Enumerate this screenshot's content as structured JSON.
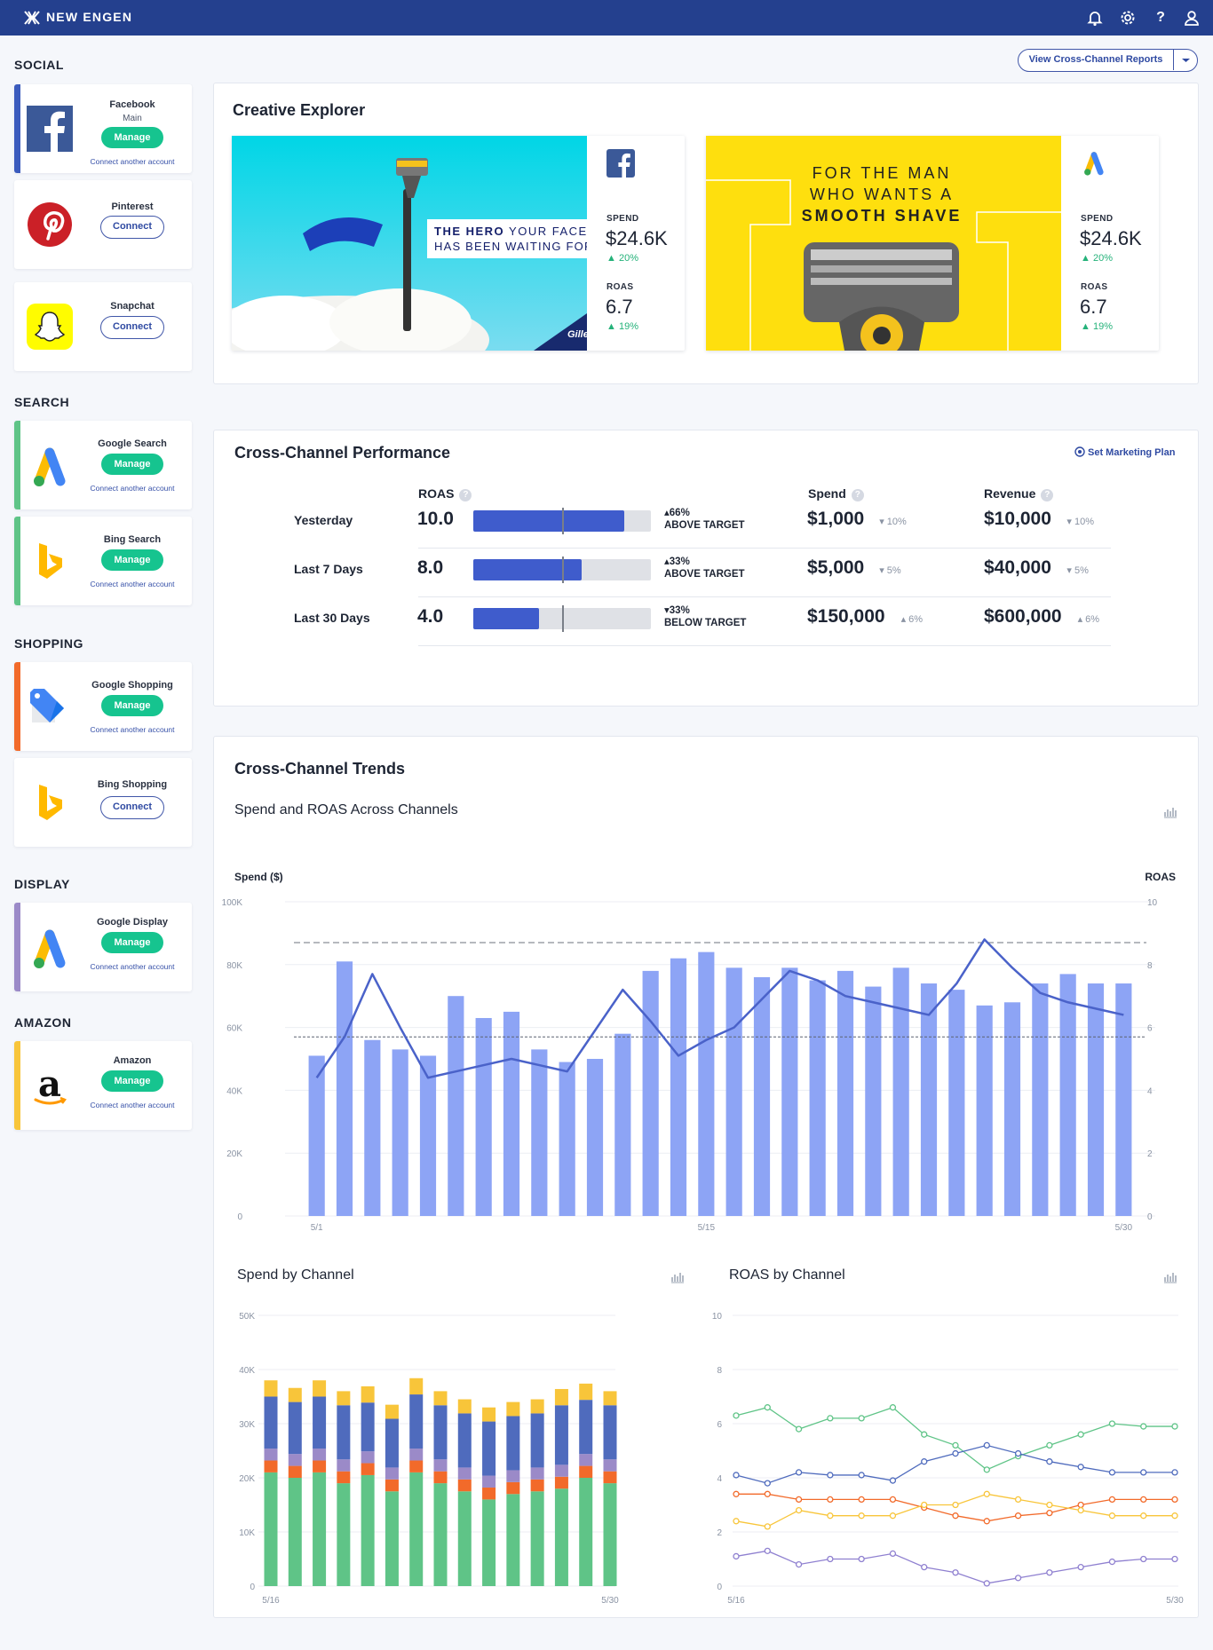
{
  "topbar": {
    "brand": "NEW ENGEN",
    "icons": [
      "bell-icon",
      "gear-icon",
      "help-icon",
      "user-icon"
    ],
    "help_glyph": "?"
  },
  "sidebar": {
    "sections": {
      "social": "SOCIAL",
      "search": "SEARCH",
      "shopping": "SHOPPING",
      "display": "DISPLAY",
      "amazon": "AMAZON"
    },
    "accounts": {
      "facebook": {
        "name": "Facebook",
        "sub": "Main",
        "action": "Manage",
        "link": "Connect another account"
      },
      "pinterest": {
        "name": "Pinterest",
        "action": "Connect"
      },
      "snapchat": {
        "name": "Snapchat",
        "action": "Connect"
      },
      "google_search": {
        "name": "Google Search",
        "action": "Manage",
        "link": "Connect another account"
      },
      "bing_search": {
        "name": "Bing Search",
        "action": "Manage",
        "link": "Connect another account"
      },
      "google_shopping": {
        "name": "Google Shopping",
        "action": "Manage",
        "link": "Connect another account"
      },
      "bing_shopping": {
        "name": "Bing Shopping",
        "action": "Connect"
      },
      "google_display": {
        "name": "Google Display",
        "action": "Manage",
        "link": "Connect another account"
      },
      "amazon": {
        "name": "Amazon",
        "action": "Manage",
        "link": "Connect another account"
      }
    },
    "colors": {
      "facebook": "#3b5bbd",
      "search": "#5fc487",
      "shopping": "#f26a2a",
      "display": "#9b8ac8",
      "amazon": "#f8c53a"
    }
  },
  "reports_button": {
    "label": "View Cross-Channel Reports"
  },
  "creative_explorer": {
    "title": "Creative Explorer",
    "ads": [
      {
        "channel": "facebook",
        "headline_bold": "THE HERO",
        "headline_rest": " YOUR FACE",
        "headline_line2": "HAS BEEN WAITING FOR.",
        "brand_mark": "Gille",
        "spend_label": "SPEND",
        "spend": "$24.6K",
        "spend_delta": "20%",
        "roas_label": "ROAS",
        "roas": "6.7",
        "roas_delta": "19%"
      },
      {
        "channel": "google-ads",
        "line1": "FOR THE MAN",
        "line2": "WHO WANTS A",
        "line3": "SMOOTH SHAVE",
        "spend_label": "SPEND",
        "spend": "$24.6K",
        "spend_delta": "20%",
        "roas_label": "ROAS",
        "roas": "6.7",
        "roas_delta": "19%"
      }
    ]
  },
  "performance": {
    "title": "Cross-Channel Performance",
    "plan_link": "Set Marketing Plan",
    "headers": {
      "roas": "ROAS",
      "spend": "Spend",
      "revenue": "Revenue",
      "help": "?"
    },
    "rows": [
      {
        "label": "Yesterday",
        "roas": "10.0",
        "fill": 0.85,
        "target_pct": "66%",
        "target_dir": "up",
        "target_text": "ABOVE TARGET",
        "spend": "$1,000",
        "spend_delta": "10%",
        "spend_dir": "down",
        "revenue": "$10,000",
        "revenue_delta": "10%",
        "revenue_dir": "down"
      },
      {
        "label": "Last 7 Days",
        "roas": "8.0",
        "fill": 0.61,
        "target_pct": "33%",
        "target_dir": "up",
        "target_text": "ABOVE TARGET",
        "spend": "$5,000",
        "spend_delta": "5%",
        "spend_dir": "down",
        "revenue": "$40,000",
        "revenue_delta": "5%",
        "revenue_dir": "down"
      },
      {
        "label": "Last 30 Days",
        "roas": "4.0",
        "fill": 0.37,
        "target_pct": "33%",
        "target_dir": "down",
        "target_text": "BELOW TARGET",
        "spend": "$150,000",
        "spend_delta": "6%",
        "spend_dir": "up",
        "revenue": "$600,000",
        "revenue_delta": "6%",
        "revenue_dir": "up"
      }
    ]
  },
  "trends": {
    "title": "Cross-Channel Trends",
    "main_chart_title": "Spend and ROAS Across Channels",
    "spend_channel_title": "Spend by Channel",
    "roas_channel_title": "ROAS by Channel"
  },
  "chart_data": [
    {
      "type": "bar",
      "title": "Spend and ROAS Across Channels",
      "ylabel": "Spend ($)",
      "y2label": "ROAS",
      "ylim": [
        0,
        100000
      ],
      "y2lim": [
        0,
        10
      ],
      "yticks": [
        "0",
        "20K",
        "40K",
        "60K",
        "80K",
        "100K"
      ],
      "y2ticks": [
        "0",
        "2",
        "4",
        "6",
        "8",
        "10"
      ],
      "xtick_labels": [
        "5/1",
        "5/15",
        "5/30"
      ],
      "xtick_index": [
        0,
        14,
        29
      ],
      "series": [
        {
          "type": "bar",
          "color": "#8da4f5",
          "values": [
            51000,
            81000,
            56000,
            53000,
            51000,
            70000,
            63000,
            65000,
            53000,
            49000,
            50000,
            58000,
            78000,
            82000,
            84000,
            79000,
            76000,
            79000,
            75000,
            78000,
            73000,
            79000,
            74000,
            72000,
            67000,
            68000,
            74000,
            77000,
            74000,
            74000
          ]
        },
        {
          "type": "line",
          "axis": "right",
          "color": "#4a62c9",
          "values": [
            4.4,
            5.7,
            7.7,
            6.0,
            4.4,
            4.6,
            4.8,
            5.0,
            4.8,
            4.6,
            5.9,
            7.2,
            6.2,
            5.1,
            5.6,
            6.0,
            6.9,
            7.8,
            7.5,
            7.0,
            6.8,
            6.6,
            6.4,
            7.4,
            8.8,
            7.9,
            7.1,
            6.8,
            6.6,
            6.4
          ]
        },
        {
          "type": "hline",
          "axis": "right",
          "style": "dashed",
          "color": "#8a8f98",
          "value": 8.7
        },
        {
          "type": "hline",
          "axis": "right",
          "style": "dotted",
          "color": "#5d6270",
          "value": 5.7
        }
      ]
    },
    {
      "type": "bar",
      "stacked": true,
      "title": "Spend by Channel",
      "ylim": [
        0,
        50000
      ],
      "yticks": [
        "0",
        "10K",
        "20K",
        "30K",
        "40K",
        "50K"
      ],
      "xtick_labels": [
        "5/16",
        "5/30"
      ],
      "series": [
        {
          "color": "#5fc487",
          "values": [
            21000,
            20000,
            21000,
            19000,
            20500,
            17500,
            21000,
            19000,
            17500,
            16000,
            17000,
            17500,
            18000,
            20000,
            19000
          ]
        },
        {
          "color": "#f26a2a",
          "values": [
            2200,
            2200,
            2200,
            2200,
            2200,
            2200,
            2200,
            2200,
            2200,
            2200,
            2200,
            2200,
            2200,
            2200,
            2200
          ]
        },
        {
          "color": "#9b8ac8",
          "values": [
            2200,
            2200,
            2200,
            2200,
            2200,
            2200,
            2200,
            2200,
            2200,
            2200,
            2200,
            2200,
            2200,
            2200,
            2200
          ]
        },
        {
          "color": "#4f6bbd",
          "values": [
            9600,
            9600,
            9600,
            10000,
            9000,
            9000,
            10000,
            10000,
            10000,
            10000,
            10000,
            10000,
            11000,
            10000,
            10000
          ]
        },
        {
          "color": "#f8c53a",
          "values": [
            3000,
            2600,
            3000,
            2600,
            3000,
            2600,
            3000,
            2600,
            2600,
            2600,
            2600,
            2600,
            3000,
            3000,
            2600
          ]
        }
      ]
    },
    {
      "type": "line",
      "title": "ROAS by Channel",
      "ylim": [
        0,
        10
      ],
      "yticks": [
        "0",
        "2",
        "4",
        "6",
        "8",
        "10"
      ],
      "xtick_labels": [
        "5/16",
        "5/30"
      ],
      "series": [
        {
          "color": "#5fc487",
          "values": [
            6.3,
            6.6,
            5.8,
            6.2,
            6.2,
            6.6,
            5.6,
            5.2,
            4.3,
            4.8,
            5.2,
            5.6,
            6.0,
            5.9,
            5.9
          ]
        },
        {
          "color": "#4f6bbd",
          "values": [
            4.1,
            3.8,
            4.2,
            4.1,
            4.1,
            3.9,
            4.6,
            4.9,
            5.2,
            4.9,
            4.6,
            4.4,
            4.2,
            4.2,
            4.2
          ]
        },
        {
          "color": "#f26a2a",
          "values": [
            3.4,
            3.4,
            3.2,
            3.2,
            3.2,
            3.2,
            2.9,
            2.6,
            2.4,
            2.6,
            2.7,
            3.0,
            3.2,
            3.2,
            3.2
          ]
        },
        {
          "color": "#f8c53a",
          "values": [
            2.4,
            2.2,
            2.8,
            2.6,
            2.6,
            2.6,
            3.0,
            3.0,
            3.4,
            3.2,
            3.0,
            2.8,
            2.6,
            2.6,
            2.6
          ]
        },
        {
          "color": "#8f80d0",
          "values": [
            1.1,
            1.3,
            0.8,
            1.0,
            1.0,
            1.2,
            0.7,
            0.5,
            0.1,
            0.3,
            0.5,
            0.7,
            0.9,
            1.0,
            1.0
          ]
        }
      ]
    }
  ]
}
